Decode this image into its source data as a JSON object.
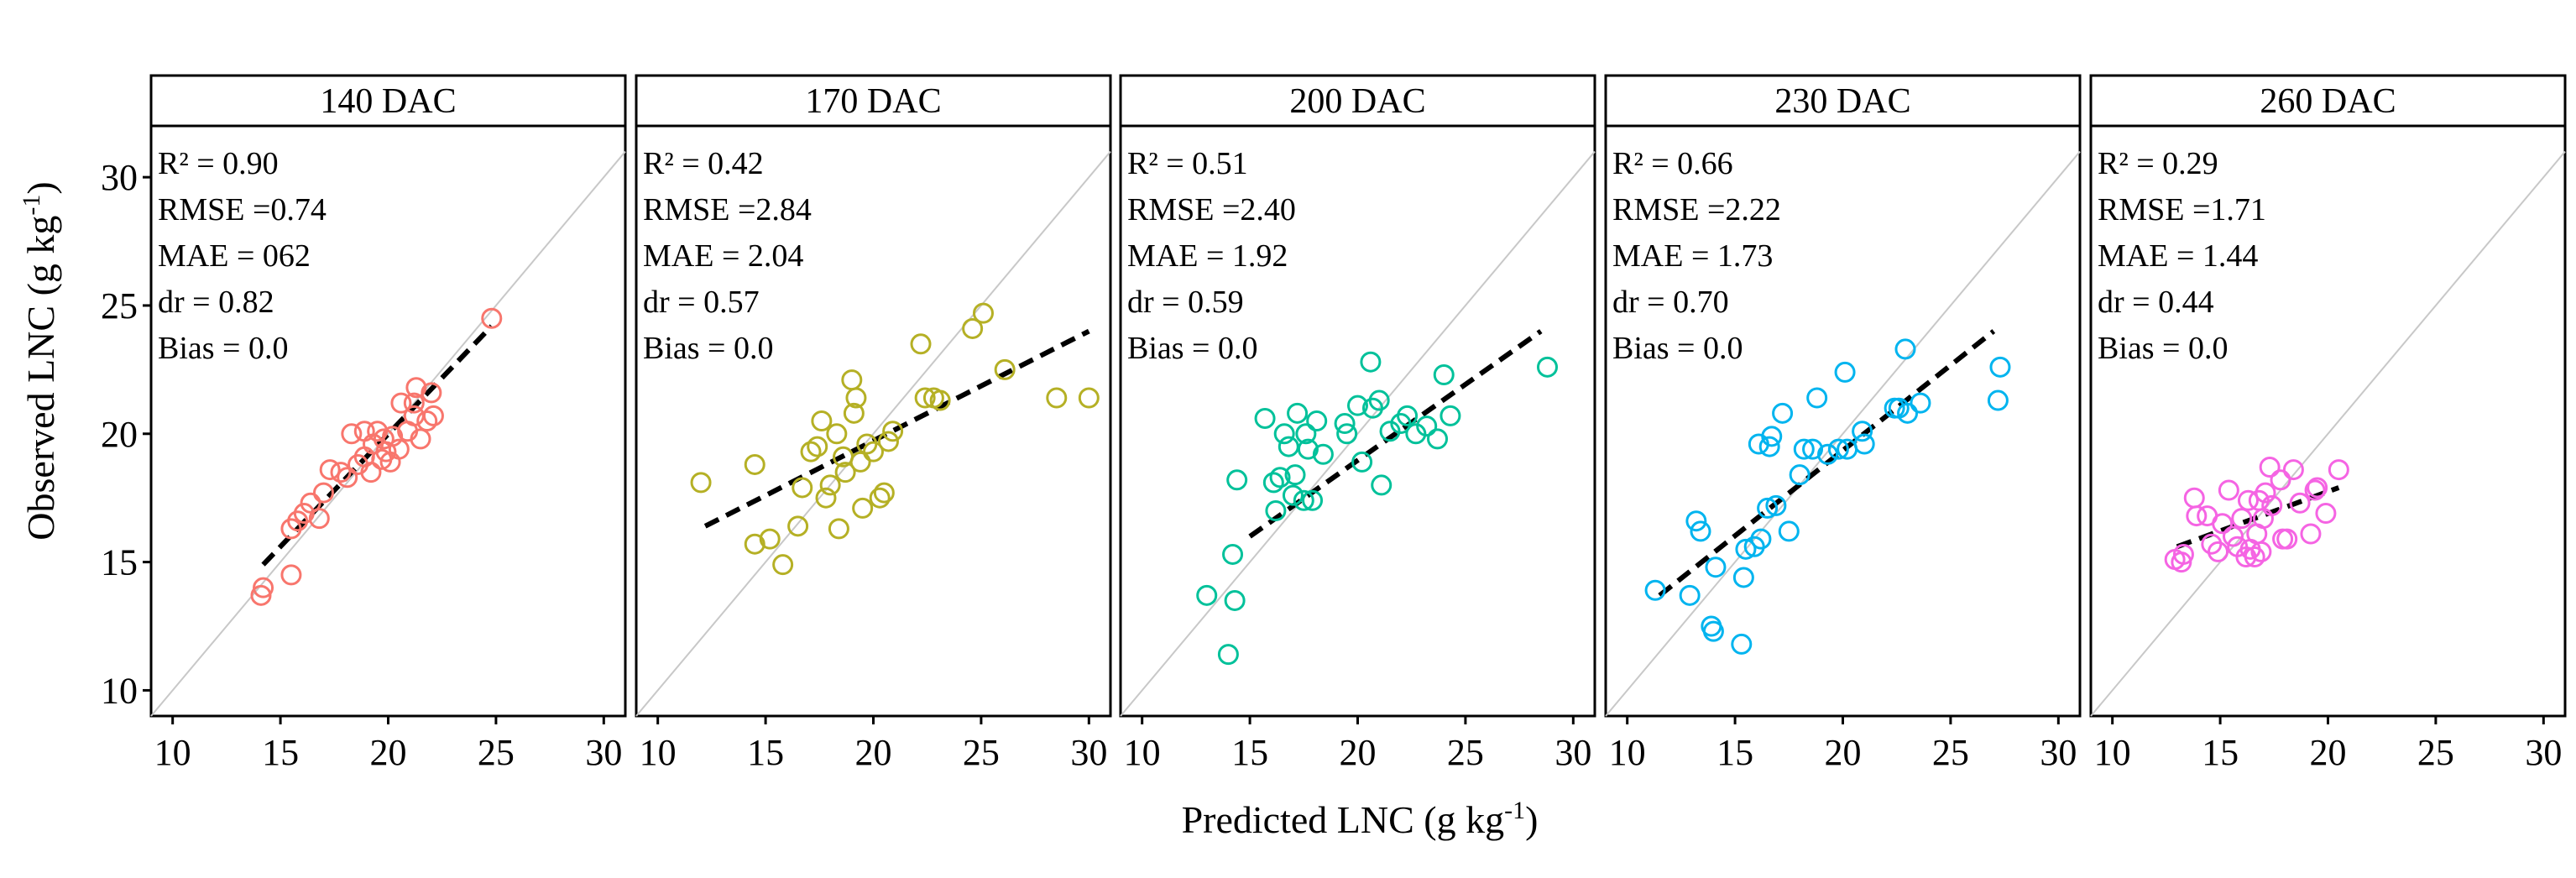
{
  "figure": {
    "xlabel": "Predicted LNC (g kg",
    "xlabel_sup": "-1",
    "xlabel_tail": ")",
    "ylabel": "Observed LNC (g kg",
    "ylabel_sup": "-1",
    "ylabel_tail": ")"
  },
  "chart_data": [
    {
      "type": "scatter",
      "title": "140 DAC",
      "color": "#F8766D",
      "xlim": [
        9,
        31
      ],
      "ylim": [
        9,
        32
      ],
      "xticks": [
        10,
        15,
        20,
        25,
        30
      ],
      "yticks": [
        10,
        15,
        20,
        25,
        30
      ],
      "stats": [
        "R² = 0.90",
        "RMSE =0.74",
        "MAE = 062",
        "dr = 0.82",
        "Bias = 0.0"
      ],
      "fit_line": [
        [
          14.2,
          14.9
        ],
        [
          24.8,
          24.2
        ]
      ],
      "points": [
        [
          14.1,
          13.7
        ],
        [
          14.2,
          14.0
        ],
        [
          15.5,
          14.5
        ],
        [
          15.5,
          16.3
        ],
        [
          15.8,
          16.6
        ],
        [
          16.1,
          16.9
        ],
        [
          16.4,
          17.3
        ],
        [
          16.8,
          16.7
        ],
        [
          17.0,
          17.7
        ],
        [
          17.3,
          18.6
        ],
        [
          17.8,
          18.5
        ],
        [
          18.1,
          18.3
        ],
        [
          18.3,
          20.0
        ],
        [
          18.6,
          18.8
        ],
        [
          18.9,
          19.1
        ],
        [
          18.9,
          20.1
        ],
        [
          19.2,
          18.5
        ],
        [
          19.3,
          19.6
        ],
        [
          19.5,
          20.1
        ],
        [
          19.7,
          19.0
        ],
        [
          19.8,
          19.8
        ],
        [
          19.9,
          19.3
        ],
        [
          20.1,
          18.9
        ],
        [
          20.2,
          19.9
        ],
        [
          20.5,
          19.4
        ],
        [
          20.6,
          21.2
        ],
        [
          20.9,
          20.1
        ],
        [
          21.2,
          20.7
        ],
        [
          21.2,
          21.2
        ],
        [
          21.3,
          21.8
        ],
        [
          21.5,
          19.8
        ],
        [
          21.8,
          20.5
        ],
        [
          22.0,
          21.6
        ],
        [
          22.1,
          20.7
        ],
        [
          24.8,
          24.5
        ]
      ]
    },
    {
      "type": "scatter",
      "title": "170 DAC",
      "color": "#B5B025",
      "xlim": [
        9,
        31
      ],
      "ylim": [
        9,
        32
      ],
      "xticks": [
        10,
        15,
        20,
        25,
        30
      ],
      "yticks": [
        10,
        15,
        20,
        25,
        30
      ],
      "stats": [
        "R² = 0.42",
        "RMSE =2.84",
        "MAE = 2.04",
        "dr = 0.57",
        "Bias = 0.0"
      ],
      "fit_line": [
        [
          12.2,
          16.4
        ],
        [
          30.0,
          24.0
        ]
      ],
      "points": [
        [
          12.0,
          18.1
        ],
        [
          14.5,
          18.8
        ],
        [
          14.5,
          15.7
        ],
        [
          15.2,
          15.9
        ],
        [
          15.8,
          14.9
        ],
        [
          16.5,
          16.4
        ],
        [
          16.7,
          17.9
        ],
        [
          17.1,
          19.3
        ],
        [
          17.4,
          19.5
        ],
        [
          17.6,
          20.5
        ],
        [
          17.8,
          17.5
        ],
        [
          18.0,
          18.0
        ],
        [
          18.3,
          20.0
        ],
        [
          18.4,
          16.3
        ],
        [
          18.6,
          19.1
        ],
        [
          18.7,
          18.5
        ],
        [
          19.0,
          22.1
        ],
        [
          19.1,
          20.8
        ],
        [
          19.2,
          21.4
        ],
        [
          19.4,
          18.9
        ],
        [
          19.5,
          17.1
        ],
        [
          19.7,
          19.6
        ],
        [
          20.0,
          19.3
        ],
        [
          20.3,
          17.5
        ],
        [
          20.5,
          17.7
        ],
        [
          20.7,
          19.7
        ],
        [
          20.9,
          20.1
        ],
        [
          22.2,
          23.5
        ],
        [
          22.4,
          21.4
        ],
        [
          22.8,
          21.4
        ],
        [
          23.1,
          21.3
        ],
        [
          24.6,
          24.1
        ],
        [
          25.1,
          24.7
        ],
        [
          26.1,
          22.5
        ],
        [
          28.5,
          21.4
        ],
        [
          30.0,
          21.4
        ]
      ]
    },
    {
      "type": "scatter",
      "title": "200 DAC",
      "color": "#00C19A",
      "xlim": [
        9,
        31
      ],
      "ylim": [
        9,
        32
      ],
      "xticks": [
        10,
        15,
        20,
        25,
        30
      ],
      "yticks": [
        10,
        15,
        20,
        25,
        30
      ],
      "stats": [
        "R² = 0.51",
        "RMSE =2.40",
        "MAE = 1.92",
        "dr = 0.59",
        "Bias = 0.0"
      ],
      "fit_line": [
        [
          15.0,
          16.0
        ],
        [
          28.5,
          24.0
        ]
      ],
      "points": [
        [
          13.0,
          13.7
        ],
        [
          14.0,
          11.4
        ],
        [
          14.2,
          15.3
        ],
        [
          14.3,
          13.5
        ],
        [
          14.4,
          18.2
        ],
        [
          15.7,
          20.6
        ],
        [
          16.1,
          18.1
        ],
        [
          16.2,
          17.0
        ],
        [
          16.4,
          18.3
        ],
        [
          16.6,
          20.0
        ],
        [
          16.8,
          19.5
        ],
        [
          17.0,
          17.6
        ],
        [
          17.1,
          18.4
        ],
        [
          17.2,
          20.8
        ],
        [
          17.5,
          17.4
        ],
        [
          17.6,
          20.0
        ],
        [
          17.7,
          19.4
        ],
        [
          17.9,
          17.4
        ],
        [
          18.1,
          20.5
        ],
        [
          18.4,
          19.2
        ],
        [
          19.4,
          20.4
        ],
        [
          19.5,
          20.0
        ],
        [
          20.0,
          21.1
        ],
        [
          20.2,
          18.9
        ],
        [
          20.6,
          22.8
        ],
        [
          20.7,
          21.0
        ],
        [
          21.0,
          21.3
        ],
        [
          21.1,
          18.0
        ],
        [
          21.5,
          20.1
        ],
        [
          22.0,
          20.4
        ],
        [
          22.3,
          20.7
        ],
        [
          22.7,
          20.0
        ],
        [
          23.2,
          20.3
        ],
        [
          23.7,
          19.8
        ],
        [
          24.0,
          22.3
        ],
        [
          24.3,
          20.7
        ],
        [
          28.8,
          22.6
        ]
      ]
    },
    {
      "type": "scatter",
      "title": "230 DAC",
      "color": "#00B4EF",
      "xlim": [
        9,
        31
      ],
      "ylim": [
        9,
        32
      ],
      "xticks": [
        10,
        15,
        20,
        25,
        30
      ],
      "yticks": [
        10,
        15,
        20,
        25,
        30
      ],
      "stats": [
        "R² = 0.66",
        "RMSE =2.22",
        "MAE = 1.73",
        "dr = 0.70",
        "Bias = 0.0"
      ],
      "fit_line": [
        [
          11.5,
          13.7
        ],
        [
          27.0,
          24.0
        ]
      ],
      "points": [
        [
          11.3,
          13.9
        ],
        [
          12.9,
          13.7
        ],
        [
          13.2,
          16.6
        ],
        [
          13.4,
          16.2
        ],
        [
          13.9,
          12.5
        ],
        [
          14.0,
          12.3
        ],
        [
          14.1,
          14.8
        ],
        [
          15.3,
          11.8
        ],
        [
          15.4,
          14.4
        ],
        [
          15.5,
          15.5
        ],
        [
          15.9,
          15.6
        ],
        [
          16.1,
          19.6
        ],
        [
          16.2,
          15.9
        ],
        [
          16.5,
          17.1
        ],
        [
          16.6,
          19.5
        ],
        [
          16.7,
          19.9
        ],
        [
          16.9,
          17.2
        ],
        [
          17.2,
          20.8
        ],
        [
          17.5,
          16.2
        ],
        [
          18.0,
          18.4
        ],
        [
          18.2,
          19.4
        ],
        [
          18.6,
          19.4
        ],
        [
          18.8,
          21.4
        ],
        [
          19.3,
          19.2
        ],
        [
          19.8,
          19.4
        ],
        [
          20.1,
          22.4
        ],
        [
          20.2,
          19.4
        ],
        [
          20.9,
          20.1
        ],
        [
          21.0,
          19.6
        ],
        [
          22.4,
          21.0
        ],
        [
          22.6,
          21.0
        ],
        [
          22.9,
          23.3
        ],
        [
          23.0,
          20.8
        ],
        [
          23.6,
          21.2
        ],
        [
          27.2,
          21.3
        ],
        [
          27.3,
          22.6
        ]
      ]
    },
    {
      "type": "scatter",
      "title": "260 DAC",
      "color": "#F564E3",
      "xlim": [
        9,
        31
      ],
      "ylim": [
        9,
        32
      ],
      "xticks": [
        10,
        15,
        20,
        25,
        30
      ],
      "yticks": [
        10,
        15,
        20,
        25,
        30
      ],
      "stats": [
        "R² = 0.29",
        "RMSE =1.71",
        "MAE = 1.44",
        "dr = 0.44",
        "Bias = 0.0"
      ],
      "fit_line": [
        [
          13.0,
          15.6
        ],
        [
          20.5,
          17.9
        ]
      ],
      "points": [
        [
          12.9,
          15.1
        ],
        [
          13.2,
          15.0
        ],
        [
          13.3,
          15.3
        ],
        [
          13.8,
          17.5
        ],
        [
          13.9,
          16.8
        ],
        [
          14.4,
          16.8
        ],
        [
          14.6,
          15.7
        ],
        [
          14.9,
          15.4
        ],
        [
          15.1,
          16.5
        ],
        [
          15.4,
          17.8
        ],
        [
          15.6,
          16.0
        ],
        [
          15.8,
          15.6
        ],
        [
          16.0,
          16.7
        ],
        [
          16.2,
          15.2
        ],
        [
          16.3,
          17.4
        ],
        [
          16.4,
          15.5
        ],
        [
          16.6,
          15.2
        ],
        [
          16.7,
          16.1
        ],
        [
          16.8,
          17.4
        ],
        [
          16.9,
          15.4
        ],
        [
          17.0,
          16.7
        ],
        [
          17.1,
          17.7
        ],
        [
          17.3,
          18.7
        ],
        [
          17.4,
          17.2
        ],
        [
          17.8,
          18.2
        ],
        [
          17.9,
          15.9
        ],
        [
          18.1,
          15.9
        ],
        [
          18.4,
          18.6
        ],
        [
          18.7,
          17.3
        ],
        [
          19.2,
          16.1
        ],
        [
          19.4,
          17.8
        ],
        [
          19.5,
          17.9
        ],
        [
          19.9,
          16.9
        ],
        [
          20.5,
          18.6
        ]
      ]
    }
  ]
}
